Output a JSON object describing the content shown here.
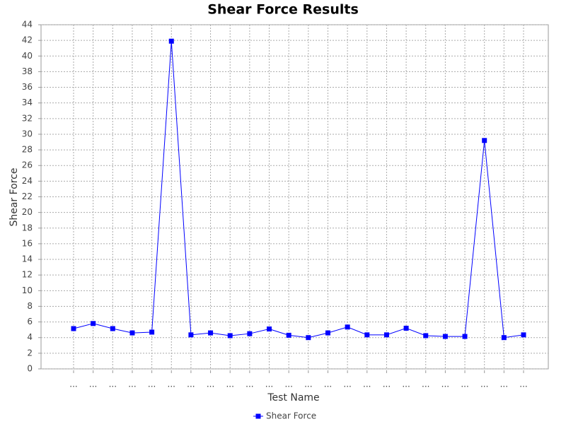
{
  "chart_data": {
    "type": "line",
    "title": "Shear Force Results",
    "x_label": "Test Name",
    "y_label": "Shear Force",
    "categories": [
      "...",
      "...",
      "...",
      "...",
      "...",
      "...",
      "...",
      "...",
      "...",
      "...",
      "...",
      "...",
      "...",
      "...",
      "...",
      "...",
      "...",
      "...",
      "...",
      "...",
      "...",
      "...",
      "...",
      "..."
    ],
    "series": [
      {
        "name": "Shear Force",
        "color": "#0000ff",
        "values": [
          5.15,
          5.8,
          5.15,
          4.6,
          4.7,
          41.9,
          4.35,
          4.6,
          4.25,
          4.5,
          5.1,
          4.3,
          4.0,
          4.6,
          5.35,
          4.35,
          4.35,
          5.2,
          4.25,
          4.15,
          4.15,
          29.2,
          4.0,
          4.35
        ]
      }
    ],
    "ylim": [
      0,
      44
    ],
    "yticks": [
      0,
      2,
      4,
      6,
      8,
      10,
      12,
      14,
      16,
      18,
      20,
      22,
      24,
      26,
      28,
      30,
      32,
      34,
      36,
      38,
      40,
      42,
      44
    ],
    "grid": true,
    "legend": "bottom"
  }
}
